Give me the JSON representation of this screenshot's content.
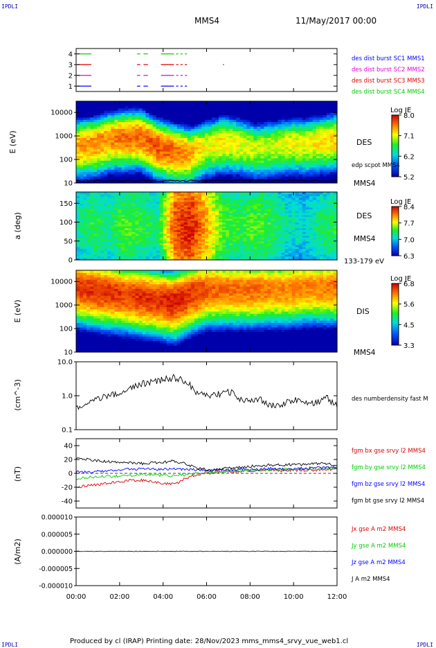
{
  "corner_tags": {
    "top_left": "IPDLI",
    "top_right": "IPDLI",
    "bottom_left": "IPDLI",
    "bottom_right": "IPDLI"
  },
  "header": {
    "spacecraft": "MMS4",
    "datetime": "11/May/2017 00:00"
  },
  "footer": {
    "text": "Produced by cl (IRAP)   Printing date: 28/Nov/2023   mms_mms4_srvy_vue_web1.cl"
  },
  "time_axis": {
    "tick_labels": [
      "00:00",
      "02:00",
      "04:00",
      "06:00",
      "08:00",
      "10:00",
      "12:00"
    ],
    "range_hours": [
      0,
      12
    ]
  },
  "colors": {
    "red": "#dd0000",
    "green": "#00cc00",
    "blue": "#0000ff",
    "magenta": "#dd00dd",
    "black": "#000000"
  },
  "chart_data": [
    {
      "type": "line",
      "panel": "burst-intervals",
      "ytick_labels": [
        "4",
        "3",
        "2",
        "1"
      ],
      "yrange": [
        0.5,
        4.5
      ],
      "legend": [
        {
          "label": "des dist burst SC1 MMS1",
          "color": "#0000ff"
        },
        {
          "label": "des dist burst SC2 MMS2",
          "color": "#dd00dd"
        },
        {
          "label": "des dist burst SC3 MMS3",
          "color": "#dd0000"
        },
        {
          "label": "des dist burst SC4 MMS4",
          "color": "#00cc00"
        }
      ],
      "series": [
        {
          "level": 4,
          "color": "#00cc00",
          "intervals": [
            [
              0.05,
              0.7
            ],
            [
              2.8,
              2.95
            ],
            [
              3.1,
              3.3
            ],
            [
              3.9,
              4.5
            ],
            [
              4.6,
              4.7
            ],
            [
              4.8,
              4.9
            ],
            [
              5.0,
              5.1
            ]
          ]
        },
        {
          "level": 3,
          "color": "#dd0000",
          "intervals": [
            [
              0.05,
              0.7
            ],
            [
              2.8,
              2.95
            ],
            [
              3.1,
              3.3
            ],
            [
              3.9,
              4.5
            ],
            [
              4.6,
              4.7
            ],
            [
              4.8,
              4.9
            ],
            [
              5.0,
              5.1
            ],
            [
              6.75,
              6.8
            ]
          ]
        },
        {
          "level": 2,
          "color": "#dd00dd",
          "intervals": [
            [
              0.05,
              0.7
            ],
            [
              2.8,
              2.95
            ],
            [
              3.1,
              3.3
            ],
            [
              3.9,
              4.5
            ],
            [
              4.6,
              4.7
            ],
            [
              4.8,
              4.9
            ],
            [
              5.0,
              5.1
            ]
          ]
        },
        {
          "level": 1,
          "color": "#0000ff",
          "intervals": [
            [
              0.05,
              0.7
            ],
            [
              2.8,
              2.95
            ],
            [
              3.1,
              3.3
            ],
            [
              3.9,
              4.5
            ],
            [
              4.6,
              4.7
            ],
            [
              4.8,
              4.9
            ],
            [
              5.0,
              5.1
            ]
          ]
        }
      ]
    },
    {
      "type": "heatmap",
      "panel": "des-energy",
      "ylabel": "E (eV)",
      "yscale": "log",
      "yrange": [
        10,
        30000
      ],
      "ytick_labels": [
        "10000",
        "1000",
        "100",
        "10"
      ],
      "label": "DES",
      "overlay_label": "edp scpot MMS4",
      "spacecraft_label": "MMS4",
      "colorbar": {
        "title": "Log JE",
        "ticks": [
          "8.0",
          "7.1",
          "6.2",
          "5.2"
        ],
        "range": [
          5.2,
          8.0
        ]
      },
      "peak_energy_trend_log10": [
        2.6,
        2.7,
        2.9,
        3.0,
        3.0,
        2.6,
        2.4,
        2.3,
        2.6,
        2.8,
        2.7,
        2.5,
        2.6,
        2.7,
        2.7,
        2.8,
        2.9
      ],
      "peak_value_trend": [
        7.4,
        7.5,
        7.5,
        7.6,
        7.6,
        7.7,
        7.6,
        7.4,
        7.1,
        7.2,
        7.1,
        7.0,
        7.0,
        7.1,
        7.1,
        7.2,
        7.3
      ]
    },
    {
      "type": "heatmap",
      "panel": "des-pitch-angle",
      "ylabel": "a (deg)",
      "yrange": [
        0,
        180
      ],
      "ytick_labels": [
        "150",
        "100",
        "50",
        "0"
      ],
      "label": "DES",
      "spacecraft_label": "MMS4",
      "energy_band": "133-179 eV",
      "colorbar": {
        "title": "Log JE",
        "ticks": [
          "8.4",
          "7.7",
          "7.0",
          "6.3"
        ],
        "range": [
          6.3,
          8.4
        ]
      },
      "level_trend": [
        7.0,
        7.2,
        7.1,
        7.3,
        7.2,
        7.1,
        8.0,
        8.2,
        7.8,
        7.3,
        7.2,
        7.3,
        7.2,
        7.0,
        6.9,
        7.1,
        7.2
      ]
    },
    {
      "type": "heatmap",
      "panel": "dis-energy",
      "ylabel": "E (eV)",
      "yscale": "log",
      "yrange": [
        10,
        30000
      ],
      "ytick_labels": [
        "10000",
        "1000",
        "100",
        "10"
      ],
      "label": "DIS",
      "spacecraft_label": "MMS4",
      "colorbar": {
        "title": "Log JE",
        "ticks": [
          "6.8",
          "5.6",
          "4.5",
          "3.3"
        ],
        "range": [
          3.3,
          6.8
        ]
      },
      "peak_energy_trend_log10": [
        3.8,
        3.7,
        3.6,
        3.5,
        3.4,
        3.3,
        3.2,
        3.5,
        3.7,
        3.7,
        3.7,
        3.7,
        3.7,
        3.7,
        3.8,
        3.8,
        3.8
      ],
      "peak_value_trend": [
        6.5,
        6.6,
        6.6,
        6.5,
        6.6,
        6.6,
        6.7,
        6.6,
        6.4,
        6.3,
        6.3,
        6.3,
        6.2,
        6.2,
        6.2,
        6.2,
        6.3
      ]
    },
    {
      "type": "line",
      "panel": "density",
      "ylabel": "(cm^-3)",
      "yscale": "log",
      "yrange": [
        0.1,
        10
      ],
      "ytick_labels": [
        "10.0",
        "1.0",
        "0.1"
      ],
      "legend": [
        {
          "label": "des numberdensity fast M",
          "color": "#000000"
        }
      ],
      "x": [
        0,
        0.5,
        1,
        1.5,
        2,
        2.5,
        3,
        3.5,
        4,
        4.5,
        5,
        5.5,
        6,
        6.5,
        7,
        7.5,
        8,
        8.5,
        9,
        9.5,
        10,
        10.5,
        11,
        11.5,
        12
      ],
      "values": [
        0.4,
        0.6,
        0.85,
        1.0,
        1.2,
        1.6,
        2.3,
        2.5,
        3.0,
        3.5,
        2.8,
        1.2,
        1.1,
        1.1,
        1.4,
        0.8,
        0.7,
        0.8,
        0.5,
        0.6,
        0.75,
        0.7,
        0.6,
        0.9,
        0.5
      ]
    },
    {
      "type": "line",
      "panel": "magnetic-field",
      "ylabel": "(nT)",
      "yrange": [
        -50,
        50
      ],
      "ytick_labels": [
        "40",
        "20",
        "0",
        "-20",
        "-40"
      ],
      "legend": [
        {
          "label": "fgm bx gse srvy l2 MMS4",
          "color": "#dd0000"
        },
        {
          "label": "fgm by gse srvy l2 MMS4",
          "color": "#00cc00"
        },
        {
          "label": "fgm bz gse srvy l2 MMS4",
          "color": "#0000ff"
        },
        {
          "label": "fgm bt gse srvy l2 MMS4",
          "color": "#000000"
        }
      ],
      "x": [
        0,
        0.5,
        1,
        1.5,
        2,
        2.5,
        3,
        3.5,
        4,
        4.5,
        5,
        5.5,
        6,
        6.5,
        7,
        7.5,
        8,
        8.5,
        9,
        9.5,
        10,
        10.5,
        11,
        11.5,
        12
      ],
      "series": [
        {
          "name": "fgm bx gse srvy l2 MMS4",
          "color": "#dd0000",
          "values": [
            -20,
            -18,
            -16,
            -14,
            -12,
            -10,
            -10,
            -12,
            -14,
            -16,
            -8,
            -2,
            0,
            2,
            3,
            3,
            4,
            4,
            5,
            4,
            5,
            4,
            5,
            6,
            6
          ]
        },
        {
          "name": "fgm by gse srvy l2 MMS4",
          "color": "#00cc00",
          "values": [
            -8,
            -6,
            -5,
            -4,
            -4,
            -3,
            -2,
            -2,
            -3,
            -4,
            -2,
            0,
            1,
            2,
            3,
            4,
            4,
            5,
            5,
            6,
            6,
            6,
            7,
            7,
            7
          ]
        },
        {
          "name": "fgm bz gse srvy l2 MMS4",
          "color": "#0000ff",
          "values": [
            2,
            2,
            3,
            4,
            5,
            6,
            6,
            6,
            6,
            7,
            6,
            5,
            4,
            5,
            5,
            6,
            6,
            6,
            7,
            6,
            7,
            7,
            8,
            8,
            8
          ]
        },
        {
          "name": "fgm bt gse srvy l2 MMS4",
          "color": "#000000",
          "values": [
            22,
            20,
            18,
            17,
            16,
            15,
            14,
            15,
            16,
            18,
            14,
            8,
            5,
            5,
            8,
            9,
            10,
            11,
            12,
            12,
            13,
            13,
            14,
            14,
            12
          ]
        }
      ]
    },
    {
      "type": "line",
      "panel": "current-density",
      "ylabel": "(A/m2)",
      "yrange": [
        -1e-05,
        1e-05
      ],
      "ytick_labels": [
        "0.000010",
        "0.000005",
        "0.000000",
        "-0.000005",
        "-0.000010"
      ],
      "legend": [
        {
          "label": "Jx gse A m2 MMS4",
          "color": "#dd0000"
        },
        {
          "label": "Jy gse A m2 MMS4",
          "color": "#00cc00"
        },
        {
          "label": "Jz gse A m2 MMS4",
          "color": "#0000ff"
        },
        {
          "label": "J A m2 MMS4",
          "color": "#000000"
        }
      ],
      "x": [
        0,
        2,
        4,
        6,
        8,
        10,
        12
      ],
      "values": [
        0,
        0,
        0,
        0,
        0,
        0,
        0
      ]
    }
  ]
}
